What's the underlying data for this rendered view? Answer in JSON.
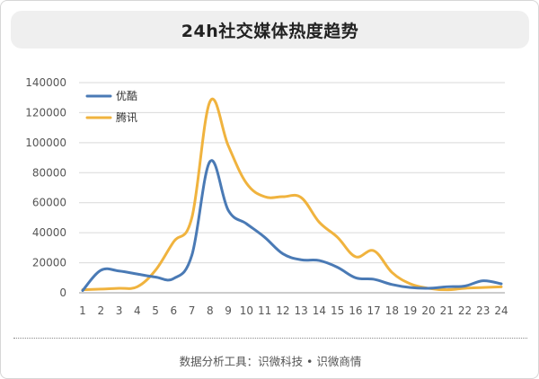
{
  "title": "24h社交媒体热度趋势",
  "footer": "数据分析工具：识微科技 • 识微商情",
  "chart_data": {
    "type": "line",
    "title": "24h社交媒体热度趋势",
    "x": [
      1,
      2,
      3,
      4,
      5,
      6,
      7,
      8,
      9,
      10,
      11,
      12,
      13,
      14,
      15,
      16,
      17,
      18,
      19,
      20,
      21,
      22,
      23,
      24
    ],
    "ylim": [
      0,
      140000
    ],
    "yticks": [
      0,
      20000,
      40000,
      60000,
      80000,
      100000,
      120000,
      140000
    ],
    "grid": true,
    "legend_position": "top-left",
    "series": [
      {
        "name": "优酷",
        "color": "#4a7ab5",
        "values": [
          1500,
          15000,
          14500,
          12500,
          10500,
          9500,
          25000,
          87500,
          55000,
          46000,
          37000,
          26000,
          22000,
          21500,
          17000,
          10000,
          9000,
          5500,
          3500,
          3000,
          4000,
          4500,
          8000,
          6000
        ]
      },
      {
        "name": "腾讯",
        "color": "#f0b33e",
        "values": [
          2000,
          2500,
          3000,
          4000,
          15000,
          34000,
          50000,
          127500,
          98000,
          73000,
          64000,
          64000,
          63500,
          47000,
          37000,
          24000,
          28000,
          13500,
          6000,
          3000,
          2000,
          3000,
          3500,
          4000
        ]
      }
    ]
  }
}
